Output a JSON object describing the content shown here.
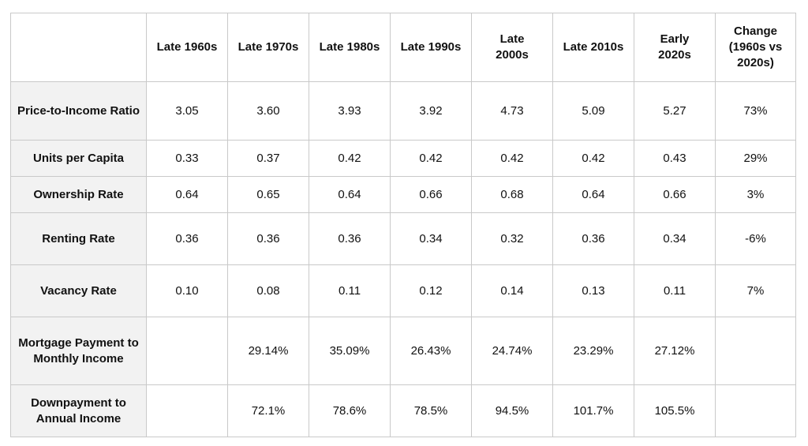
{
  "table": {
    "corner": "",
    "columns": [
      "Late 1960s",
      "Late 1970s",
      "Late 1980s",
      "Late 1990s",
      "Late 2000s",
      "Late 2010s",
      "Early 2020s",
      "Change (1960s vs 2020s)"
    ],
    "rows": [
      {
        "label": "Price-to-Income Ratio",
        "cells": [
          "3.05",
          "3.60",
          "3.93",
          "3.92",
          "4.73",
          "5.09",
          "5.27",
          "73%"
        ]
      },
      {
        "label": "Units per Capita",
        "cells": [
          "0.33",
          "0.37",
          "0.42",
          "0.42",
          "0.42",
          "0.42",
          "0.43",
          "29%"
        ]
      },
      {
        "label": "Ownership Rate",
        "cells": [
          "0.64",
          "0.65",
          "0.64",
          "0.66",
          "0.68",
          "0.64",
          "0.66",
          "3%"
        ]
      },
      {
        "label": "Renting Rate",
        "cells": [
          "0.36",
          "0.36",
          "0.36",
          "0.34",
          "0.32",
          "0.36",
          "0.34",
          "-6%"
        ]
      },
      {
        "label": "Vacancy Rate",
        "cells": [
          "0.10",
          "0.08",
          "0.11",
          "0.12",
          "0.14",
          "0.13",
          "0.11",
          "7%"
        ]
      },
      {
        "label": "Mortgage Payment to Monthly Income",
        "cells": [
          "",
          "29.14%",
          "35.09%",
          "26.43%",
          "24.74%",
          "23.29%",
          "27.12%",
          ""
        ]
      },
      {
        "label": "Downpayment to Annual Income",
        "cells": [
          "",
          "72.1%",
          "78.6%",
          "78.5%",
          "94.5%",
          "101.7%",
          "105.5%",
          ""
        ]
      }
    ]
  }
}
